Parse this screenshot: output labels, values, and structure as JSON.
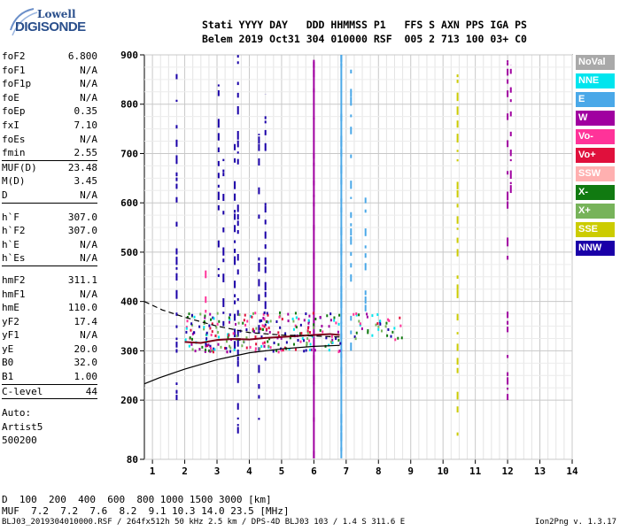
{
  "logo": {
    "line1": "Lowell",
    "line2": "DIGISONDE"
  },
  "header": {
    "line1": "Stati YYYY DAY   DDD HHMMSS P1   FFS S AXN PPS IGA PS",
    "line2": "Belem 2019 Oct31 304 010000 RSF  005 2 713 100 03+ C0"
  },
  "params": {
    "group1": [
      {
        "name": "foF2",
        "value": "6.800"
      },
      {
        "name": "foF1",
        "value": "N/A"
      },
      {
        "name": "foF1p",
        "value": "N/A"
      },
      {
        "name": "foE",
        "value": "N/A"
      },
      {
        "name": "foEp",
        "value": "0.35"
      },
      {
        "name": "fxI",
        "value": "7.10"
      },
      {
        "name": "foEs",
        "value": "N/A"
      },
      {
        "name": "fmin",
        "value": "2.55"
      }
    ],
    "group2": [
      {
        "name": "MUF(D)",
        "value": "23.48"
      },
      {
        "name": "M(D)",
        "value": "3.45"
      },
      {
        "name": "D",
        "value": "N/A"
      }
    ],
    "group3": [
      {
        "name": "h`F",
        "value": "307.0"
      },
      {
        "name": "h`F2",
        "value": "307.0"
      },
      {
        "name": "h`E",
        "value": "N/A"
      },
      {
        "name": "h`Es",
        "value": "N/A"
      }
    ],
    "group4": [
      {
        "name": "hmF2",
        "value": "311.1"
      },
      {
        "name": "hmF1",
        "value": "N/A"
      },
      {
        "name": "hmE",
        "value": "110.0"
      },
      {
        "name": "yF2",
        "value": "17.4"
      },
      {
        "name": "yF1",
        "value": "N/A"
      },
      {
        "name": "yE",
        "value": "20.0"
      },
      {
        "name": "B0",
        "value": "32.0"
      },
      {
        "name": "B1",
        "value": "1.00"
      }
    ],
    "group5": [
      {
        "name": "C-level",
        "value": "44"
      }
    ],
    "auto": [
      "Auto:",
      "Artist5",
      "500200"
    ]
  },
  "legend": [
    {
      "label": "NoVal",
      "color": "#a9a9a9"
    },
    {
      "label": "NNE",
      "color": "#00e5ee"
    },
    {
      "label": "E",
      "color": "#4aa8e8"
    },
    {
      "label": "W",
      "color": "#a000a0"
    },
    {
      "label": "Vo-",
      "color": "#ff3399"
    },
    {
      "label": "Vo+",
      "color": "#e0103c"
    },
    {
      "label": "SSW",
      "color": "#ffb0b0"
    },
    {
      "label": "X-",
      "color": "#117a11"
    },
    {
      "label": "X+",
      "color": "#77b35a"
    },
    {
      "label": "SSE",
      "color": "#cccc00"
    },
    {
      "label": "NNW",
      "color": "#1a00a8"
    }
  ],
  "chart_data": {
    "type": "scatter",
    "xlim": [
      0.75,
      14
    ],
    "ylim": [
      80,
      900
    ],
    "x_ticks": [
      "1",
      "2",
      "3",
      "4",
      "5",
      "6",
      "7",
      "8",
      "9",
      "10",
      "11",
      "12",
      "13",
      "14"
    ],
    "y_ticks": [
      "80",
      "200",
      "300",
      "400",
      "500",
      "600",
      "700",
      "800",
      "900"
    ],
    "grid": true,
    "profile_solid": {
      "x": [
        0.75,
        1.2,
        2.0,
        3.0,
        4.0,
        5.0,
        6.0,
        6.8
      ],
      "y": [
        233,
        245,
        263,
        282,
        296,
        304,
        309,
        311
      ]
    },
    "profile_dashed": {
      "x": [
        0.75,
        1.3,
        2.0,
        3.0,
        4.0,
        5.0,
        6.0,
        6.8
      ],
      "y": [
        400,
        383,
        368,
        350,
        337,
        332,
        330,
        328
      ]
    },
    "trace_f": {
      "x": [
        2.0,
        2.5,
        3.0,
        3.5,
        4.0,
        4.5,
        5.0,
        5.5,
        6.0,
        6.5,
        6.8
      ],
      "y": [
        318,
        316,
        322,
        324,
        323,
        326,
        328,
        330,
        332,
        334,
        332
      ]
    },
    "echo_columns": [
      {
        "x": 1.75,
        "y1": 200,
        "y2": 880,
        "color": "#1a00a8"
      },
      {
        "x": 2.65,
        "y1": 360,
        "y2": 500,
        "color": "#ff3399"
      },
      {
        "x": 3.05,
        "y1": 400,
        "y2": 840,
        "color": "#1a00a8"
      },
      {
        "x": 3.2,
        "y1": 350,
        "y2": 700,
        "color": "#1a00a8"
      },
      {
        "x": 3.55,
        "y1": 280,
        "y2": 740,
        "color": "#1a00a8"
      },
      {
        "x": 3.65,
        "y1": 90,
        "y2": 900,
        "color": "#1a00a8"
      },
      {
        "x": 4.3,
        "y1": 160,
        "y2": 740,
        "color": "#1a00a8"
      },
      {
        "x": 4.5,
        "y1": 280,
        "y2": 820,
        "color": "#1a00a8"
      },
      {
        "x": 6.0,
        "y1": 82,
        "y2": 890,
        "color": "#a000a0"
      },
      {
        "x": 6.85,
        "y1": 82,
        "y2": 900,
        "color": "#4aa8e8"
      },
      {
        "x": 7.15,
        "y1": 300,
        "y2": 890,
        "color": "#4aa8e8"
      },
      {
        "x": 7.6,
        "y1": 380,
        "y2": 620,
        "color": "#4aa8e8"
      },
      {
        "x": 10.45,
        "y1": 120,
        "y2": 880,
        "color": "#cccc00"
      },
      {
        "x": 12.0,
        "y1": 200,
        "y2": 890,
        "color": "#a000a0"
      },
      {
        "x": 12.1,
        "y1": 620,
        "y2": 880,
        "color": "#a000a0"
      }
    ]
  },
  "bottom": {
    "d_label": "D",
    "d_values": "  100  200  400  600  800 1000 1500 3000 [km]",
    "muf_label": "MUF",
    "muf_values": "  7.2  7.2  7.6  8.2  9.1 10.3 14.0 23.5 [MHz]"
  },
  "footer": {
    "left": "BLJ03_2019304010000.RSF / 264fx512h 50 kHz 2.5 km / DPS-4D BLJ03 103 / 1.4 S 311.6 E",
    "right": "Ion2Png v. 1.3.17"
  }
}
